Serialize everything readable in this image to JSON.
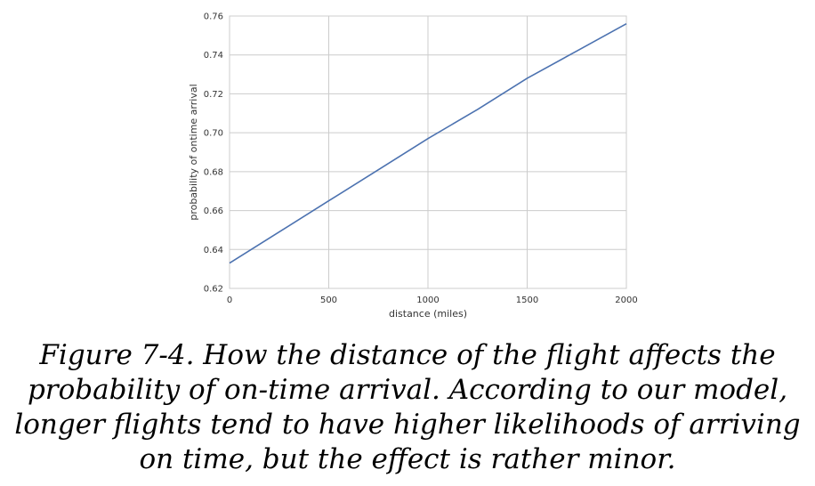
{
  "chart_data": {
    "type": "line",
    "xlabel": "distance (miles)",
    "ylabel": "probability of ontime arrival",
    "xlim": [
      0,
      2000
    ],
    "ylim": [
      0.62,
      0.76
    ],
    "xticks": [
      "0",
      "500",
      "1000",
      "1500",
      "2000"
    ],
    "yticks": [
      "0.62",
      "0.64",
      "0.66",
      "0.68",
      "0.70",
      "0.72",
      "0.74",
      "0.76"
    ],
    "grid": true,
    "series": [
      {
        "x": [
          0,
          250,
          500,
          750,
          1000,
          1250,
          1500,
          1750,
          2000
        ],
        "y": [
          0.633,
          0.649,
          0.665,
          0.681,
          0.697,
          0.712,
          0.728,
          0.742,
          0.756
        ]
      }
    ],
    "colors": {
      "line": "#4c72b0",
      "grid": "#cccccc",
      "frame": "#cccccc"
    }
  },
  "caption": {
    "label": "Figure 7-4.",
    "text": "How the distance of the flight affects the probability of on-time arrival. According to our model, longer flights tend to have higher likelihoods of arriving on time, but the effect is rather minor."
  }
}
